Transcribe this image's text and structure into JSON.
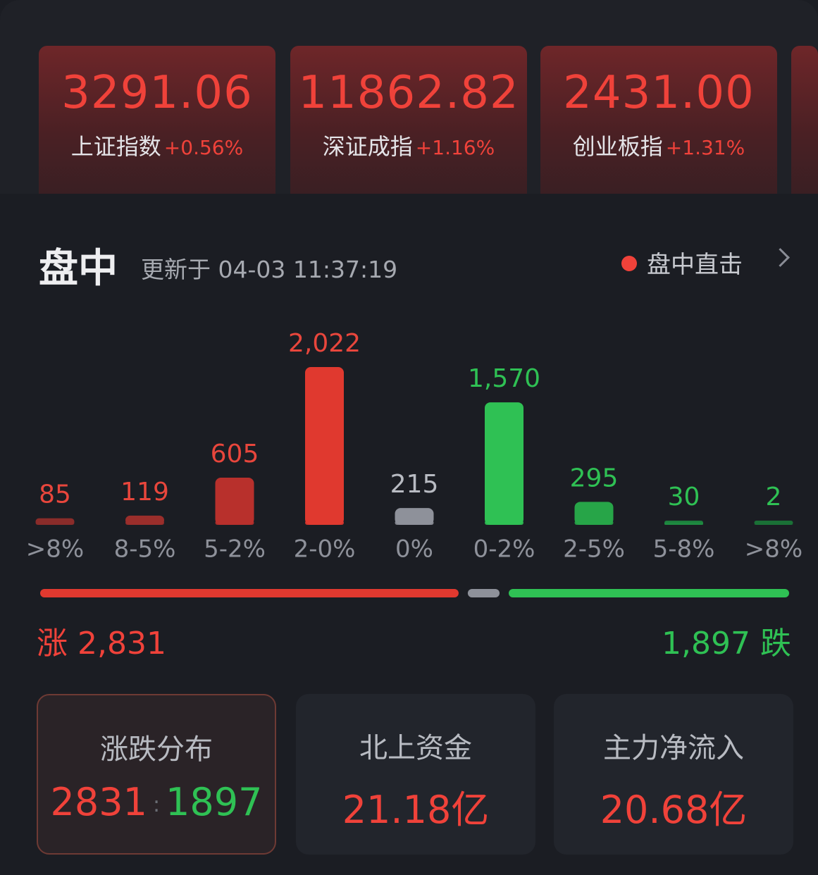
{
  "indices": [
    {
      "value": "3291.06",
      "name": "上证指数",
      "change": "+0.56%"
    },
    {
      "value": "11862.82",
      "name": "深证成指",
      "change": "+1.16%"
    },
    {
      "value": "2431.00",
      "name": "创业板指",
      "change": "+1.31%"
    }
  ],
  "section": {
    "title": "盘中",
    "updated": "更新于 04-03 11:37:19",
    "live": "盘中直击"
  },
  "chart_data": {
    "type": "bar",
    "categories": [
      ">8%",
      "8-5%",
      "5-2%",
      "2-0%",
      "0%",
      "0-2%",
      "2-5%",
      "5-8%",
      ">8%"
    ],
    "values": [
      85,
      119,
      605,
      2022,
      215,
      1570,
      295,
      30,
      2
    ],
    "value_labels": [
      "85",
      "119",
      "605",
      "2,022",
      "215",
      "1,570",
      "295",
      "30",
      "2"
    ],
    "colors": [
      "#8a2c2a",
      "#9a2e2b",
      "#b8302c",
      "#e0392f",
      "#8e919a",
      "#2fc154",
      "#27a548",
      "#1e8a40",
      "#1b7a38"
    ],
    "label_colors": [
      "#e8463c",
      "#e8463c",
      "#e8463c",
      "#e8463c",
      "#b8bbc2",
      "#2fc154",
      "#2fc154",
      "#2fc154",
      "#2fc154"
    ]
  },
  "breadth": {
    "up_label": "涨",
    "down_label": "跌",
    "values": [
      2831,
      1897
    ],
    "value_labels": [
      "2,831",
      "1,897"
    ]
  },
  "cards": [
    {
      "title": "涨跌分布",
      "up": "2831",
      "down": "1897"
    },
    {
      "title": "北上资金",
      "value": "21.18亿"
    },
    {
      "title": "主力净流入",
      "value": "20.68亿"
    }
  ]
}
